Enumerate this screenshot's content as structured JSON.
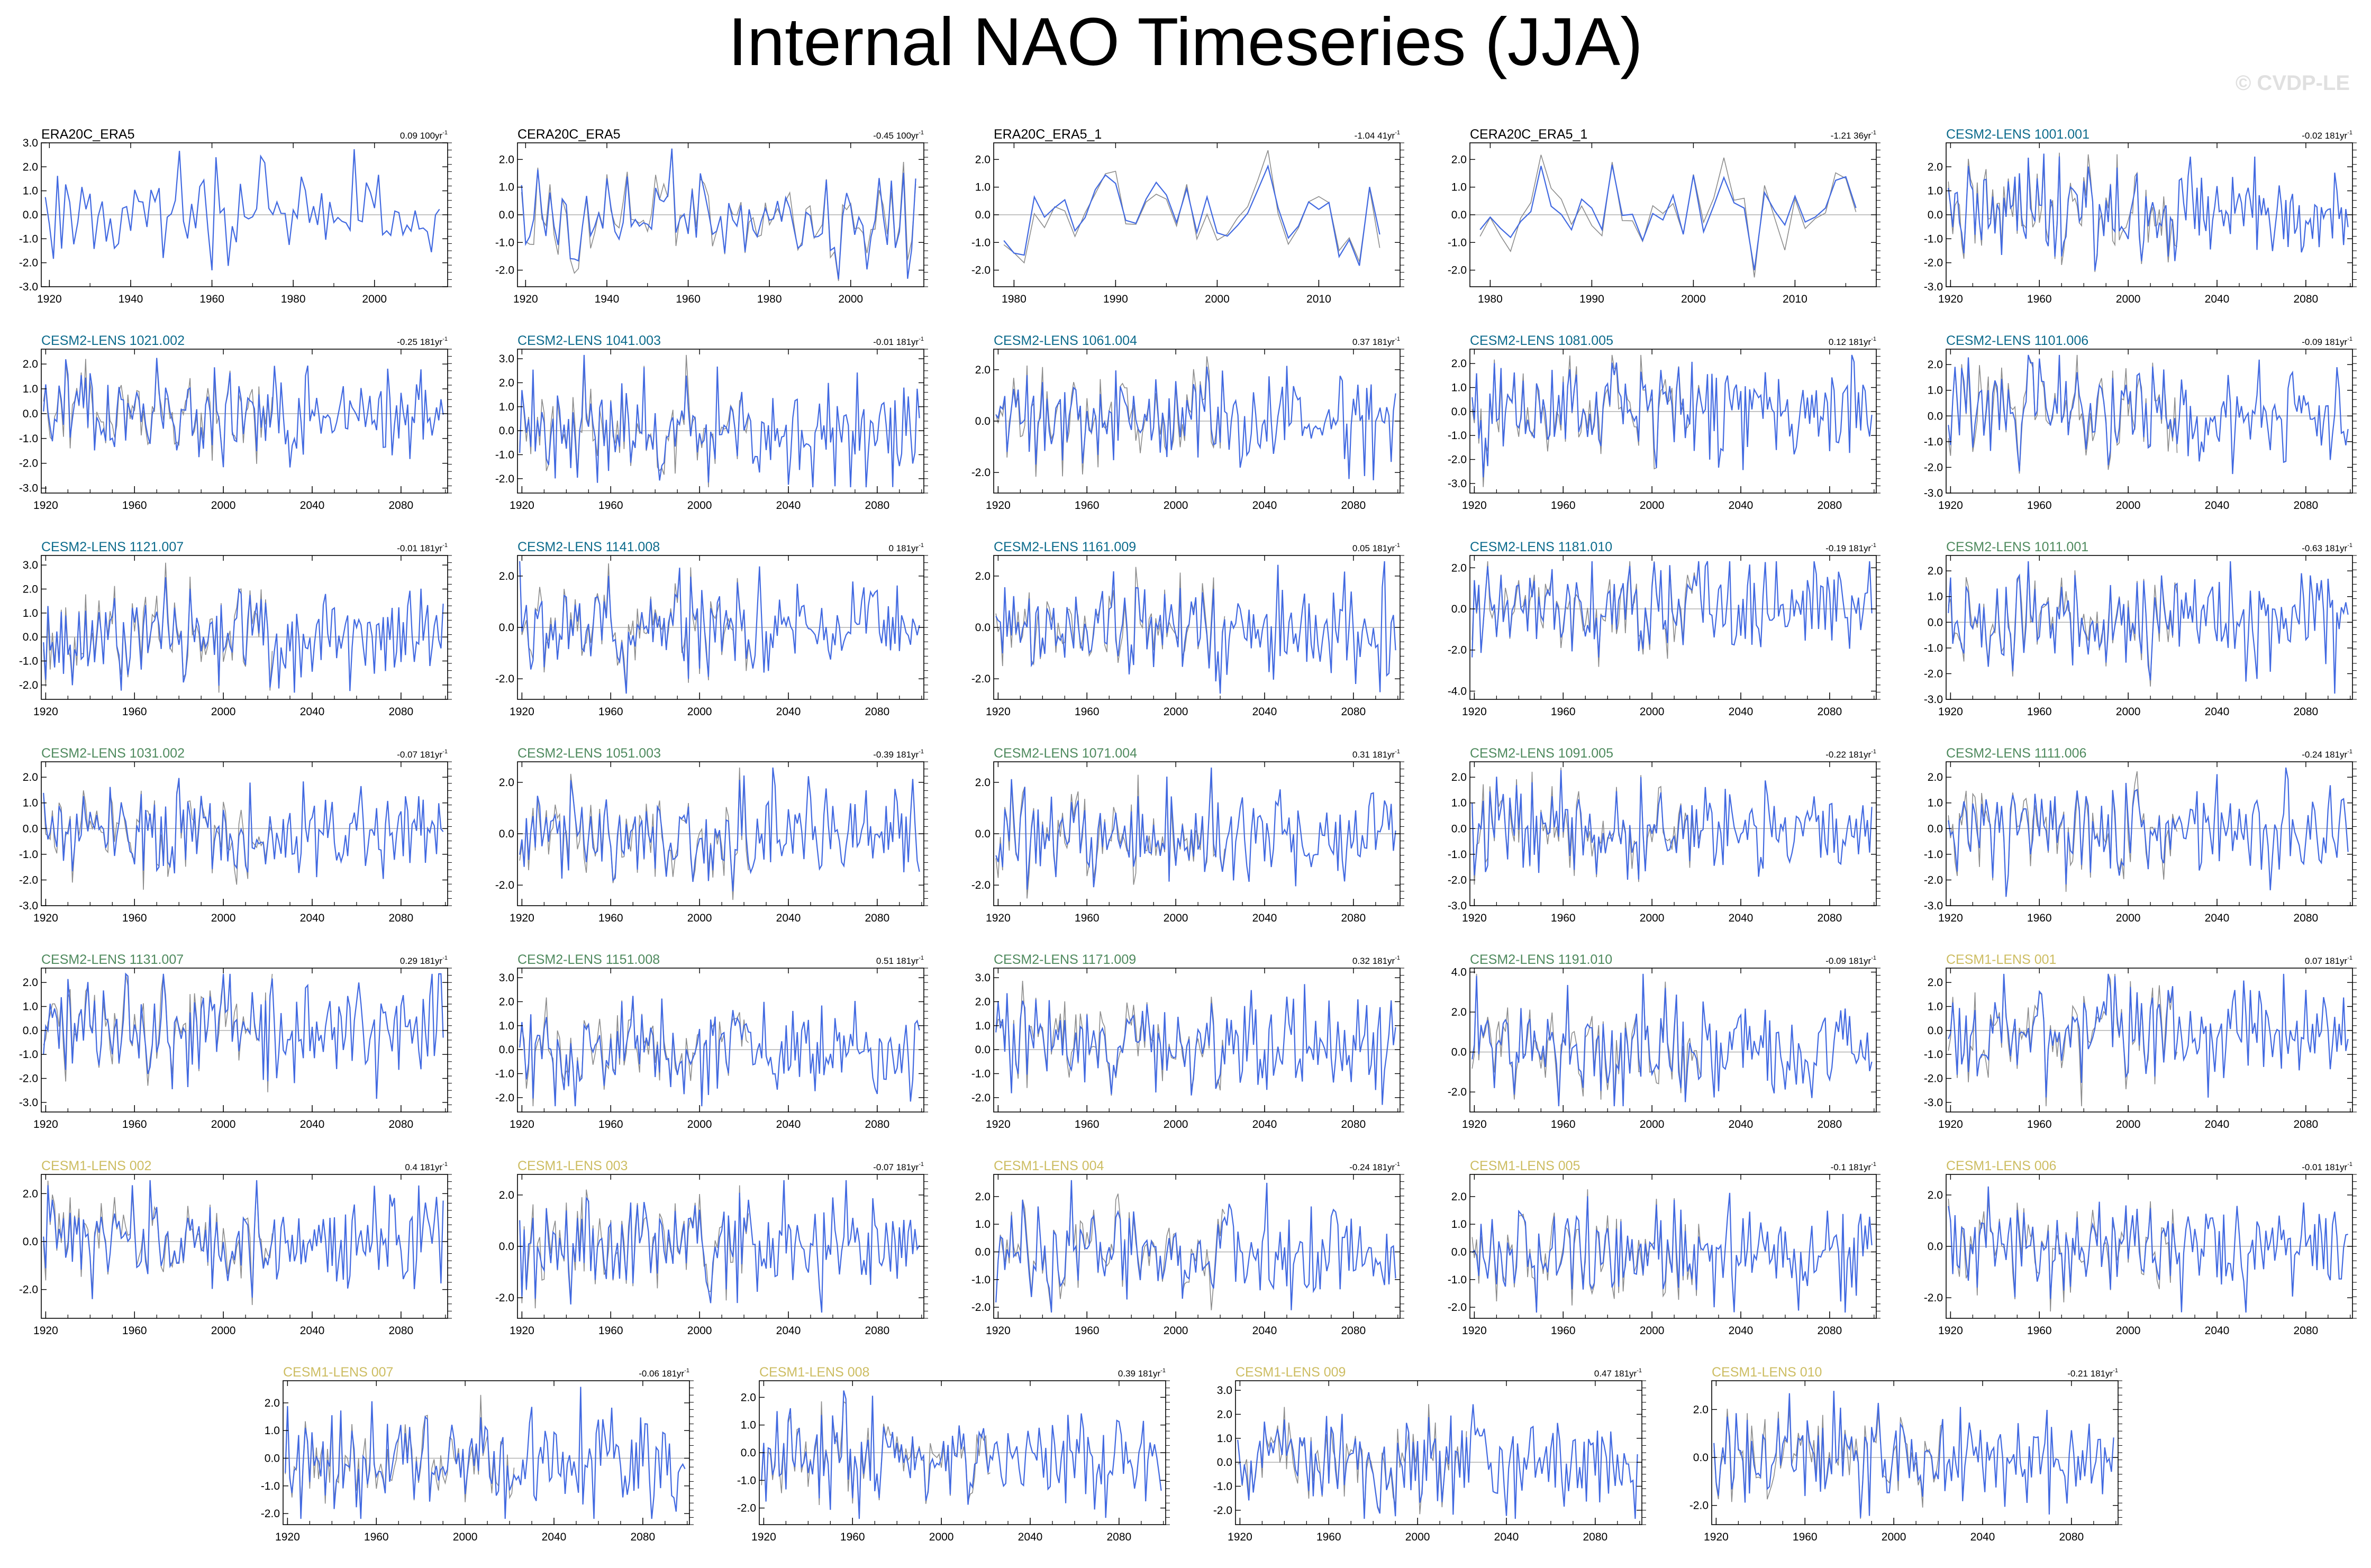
{
  "title": "Internal NAO Timeseries (JJA)",
  "watermark": "© CVDP-LE",
  "colors": {
    "obs_name": "#000000",
    "cesm2_first": "#0d6b8c",
    "cesm2_second": "#4f8a5e",
    "cesm1": "#cdbd62",
    "internal_line": "#4169e1",
    "total_line": "#8c8c8c",
    "zero_line": "#b0b0b0",
    "axis": "#000000"
  },
  "chart_data": [
    {
      "type": "line",
      "name": "ERA20C_ERA5",
      "trend_value": "0.09",
      "trend_unit": "100yr",
      "name_color": "obs_name",
      "x_range": [
        1918,
        2018
      ],
      "x_ticks": [
        "1920",
        "1940",
        "1960",
        "1980",
        "2000"
      ],
      "ylim": [
        -3,
        3
      ],
      "y_ticks": [
        "3.0",
        "2.0",
        "1.0",
        "0.0",
        "-1.0",
        "-2.0",
        "-3.0"
      ],
      "series_count": 1
    },
    {
      "type": "line",
      "name": "CERA20C_ERA5",
      "trend_value": "-0.45",
      "trend_unit": "100yr",
      "name_color": "obs_name",
      "x_range": [
        1918,
        2018
      ],
      "x_ticks": [
        "1920",
        "1940",
        "1960",
        "1980",
        "2000"
      ],
      "ylim": [
        -2.6,
        2.6
      ],
      "y_ticks": [
        "2.0",
        "1.0",
        "0.0",
        "-1.0",
        "-2.0"
      ],
      "series_count": 2
    },
    {
      "type": "line",
      "name": "ERA20C_ERA5_1",
      "trend_value": "-1.04",
      "trend_unit": "41yr",
      "name_color": "obs_name",
      "x_range": [
        1978,
        2018
      ],
      "x_ticks": [
        "1980",
        "1990",
        "2000",
        "2010"
      ],
      "ylim": [
        -2.6,
        2.6
      ],
      "y_ticks": [
        "2.0",
        "1.0",
        "0.0",
        "-1.0",
        "-2.0"
      ],
      "series_count": 2
    },
    {
      "type": "line",
      "name": "CERA20C_ERA5_1",
      "trend_value": "-1.21",
      "trend_unit": "36yr",
      "name_color": "obs_name",
      "x_range": [
        1978,
        2018
      ],
      "x_ticks": [
        "1980",
        "1990",
        "2000",
        "2010"
      ],
      "ylim": [
        -2.6,
        2.6
      ],
      "y_ticks": [
        "2.0",
        "1.0",
        "0.0",
        "-1.0",
        "-2.0"
      ],
      "series_count": 2
    },
    {
      "type": "line",
      "name": "CESM2-LENS 1001.001",
      "trend_value": "-0.02",
      "trend_unit": "181yr",
      "name_color": "cesm2_first",
      "x_range": [
        1918,
        2101
      ],
      "x_ticks": [
        "1920",
        "1960",
        "2000",
        "2040",
        "2080"
      ],
      "ylim": [
        -3,
        3
      ],
      "y_ticks": [
        "2.0",
        "1.0",
        "0.0",
        "-1.0",
        "-2.0",
        "-3.0"
      ],
      "series_count": 2
    },
    {
      "type": "line",
      "name": "CESM2-LENS 1021.002",
      "trend_value": "-0.25",
      "trend_unit": "181yr",
      "name_color": "cesm2_first",
      "x_range": [
        1918,
        2101
      ],
      "x_ticks": [
        "1920",
        "1960",
        "2000",
        "2040",
        "2080"
      ],
      "ylim": [
        -3.2,
        2.6
      ],
      "y_ticks": [
        "2.0",
        "1.0",
        "0.0",
        "-1.0",
        "-2.0",
        "-3.0"
      ],
      "series_count": 2
    },
    {
      "type": "line",
      "name": "CESM2-LENS 1041.003",
      "trend_value": "-0.01",
      "trend_unit": "181yr",
      "name_color": "cesm2_first",
      "x_range": [
        1918,
        2101
      ],
      "x_ticks": [
        "1920",
        "1960",
        "2000",
        "2040",
        "2080"
      ],
      "ylim": [
        -2.6,
        3.4
      ],
      "y_ticks": [
        "3.0",
        "2.0",
        "1.0",
        "0.0",
        "-1.0",
        "-2.0"
      ],
      "series_count": 2
    },
    {
      "type": "line",
      "name": "CESM2-LENS 1061.004",
      "trend_value": "0.37",
      "trend_unit": "181yr",
      "name_color": "cesm2_first",
      "x_range": [
        1918,
        2101
      ],
      "x_ticks": [
        "1920",
        "1960",
        "2000",
        "2040",
        "2080"
      ],
      "ylim": [
        -2.8,
        2.8
      ],
      "y_ticks": [
        "2.0",
        "0.0",
        "-2.0"
      ],
      "series_count": 2
    },
    {
      "type": "line",
      "name": "CESM2-LENS 1081.005",
      "trend_value": "0.12",
      "trend_unit": "181yr",
      "name_color": "cesm2_first",
      "x_range": [
        1918,
        2101
      ],
      "x_ticks": [
        "1920",
        "1960",
        "2000",
        "2040",
        "2080"
      ],
      "ylim": [
        -3.4,
        2.6
      ],
      "y_ticks": [
        "2.0",
        "1.0",
        "0.0",
        "-1.0",
        "-2.0",
        "-3.0"
      ],
      "series_count": 2
    },
    {
      "type": "line",
      "name": "CESM2-LENS 1101.006",
      "trend_value": "-0.09",
      "trend_unit": "181yr",
      "name_color": "cesm2_first",
      "x_range": [
        1918,
        2101
      ],
      "x_ticks": [
        "1920",
        "1960",
        "2000",
        "2040",
        "2080"
      ],
      "ylim": [
        -3,
        2.6
      ],
      "y_ticks": [
        "2.0",
        "1.0",
        "0.0",
        "-1.0",
        "-2.0",
        "-3.0"
      ],
      "series_count": 2
    },
    {
      "type": "line",
      "name": "CESM2-LENS 1121.007",
      "trend_value": "-0.01",
      "trend_unit": "181yr",
      "name_color": "cesm2_first",
      "x_range": [
        1918,
        2101
      ],
      "x_ticks": [
        "1920",
        "1960",
        "2000",
        "2040",
        "2080"
      ],
      "ylim": [
        -2.6,
        3.4
      ],
      "y_ticks": [
        "3.0",
        "2.0",
        "1.0",
        "0.0",
        "-1.0",
        "-2.0"
      ],
      "series_count": 2
    },
    {
      "type": "line",
      "name": "CESM2-LENS 1141.008",
      "trend_value": "0",
      "trend_unit": "181yr",
      "name_color": "cesm2_first",
      "x_range": [
        1918,
        2101
      ],
      "x_ticks": [
        "1920",
        "1960",
        "2000",
        "2040",
        "2080"
      ],
      "ylim": [
        -2.8,
        2.8
      ],
      "y_ticks": [
        "2.0",
        "0.0",
        "-2.0"
      ],
      "series_count": 2
    },
    {
      "type": "line",
      "name": "CESM2-LENS 1161.009",
      "trend_value": "0.05",
      "trend_unit": "181yr",
      "name_color": "cesm2_first",
      "x_range": [
        1918,
        2101
      ],
      "x_ticks": [
        "1920",
        "1960",
        "2000",
        "2040",
        "2080"
      ],
      "ylim": [
        -2.8,
        2.8
      ],
      "y_ticks": [
        "2.0",
        "0.0",
        "-2.0"
      ],
      "series_count": 2
    },
    {
      "type": "line",
      "name": "CESM2-LENS 1181.010",
      "trend_value": "-0.19",
      "trend_unit": "181yr",
      "name_color": "cesm2_first",
      "x_range": [
        1918,
        2101
      ],
      "x_ticks": [
        "1920",
        "1960",
        "2000",
        "2040",
        "2080"
      ],
      "ylim": [
        -4.4,
        2.6
      ],
      "y_ticks": [
        "2.0",
        "0.0",
        "-2.0",
        "-4.0"
      ],
      "series_count": 2
    },
    {
      "type": "line",
      "name": "CESM2-LENS 1011.001",
      "trend_value": "-0.63",
      "trend_unit": "181yr",
      "name_color": "cesm2_second",
      "x_range": [
        1918,
        2101
      ],
      "x_ticks": [
        "1920",
        "1960",
        "2000",
        "2040",
        "2080"
      ],
      "ylim": [
        -3,
        2.6
      ],
      "y_ticks": [
        "2.0",
        "1.0",
        "0.0",
        "-1.0",
        "-2.0",
        "-3.0"
      ],
      "series_count": 2
    },
    {
      "type": "line",
      "name": "CESM2-LENS 1031.002",
      "trend_value": "-0.07",
      "trend_unit": "181yr",
      "name_color": "cesm2_second",
      "x_range": [
        1918,
        2101
      ],
      "x_ticks": [
        "1920",
        "1960",
        "2000",
        "2040",
        "2080"
      ],
      "ylim": [
        -3,
        2.6
      ],
      "y_ticks": [
        "2.0",
        "1.0",
        "0.0",
        "-1.0",
        "-2.0",
        "-3.0"
      ],
      "series_count": 2
    },
    {
      "type": "line",
      "name": "CESM2-LENS 1051.003",
      "trend_value": "-0.39",
      "trend_unit": "181yr",
      "name_color": "cesm2_second",
      "x_range": [
        1918,
        2101
      ],
      "x_ticks": [
        "1920",
        "1960",
        "2000",
        "2040",
        "2080"
      ],
      "ylim": [
        -2.8,
        2.8
      ],
      "y_ticks": [
        "2.0",
        "0.0",
        "-2.0"
      ],
      "series_count": 2
    },
    {
      "type": "line",
      "name": "CESM2-LENS 1071.004",
      "trend_value": "0.31",
      "trend_unit": "181yr",
      "name_color": "cesm2_second",
      "x_range": [
        1918,
        2101
      ],
      "x_ticks": [
        "1920",
        "1960",
        "2000",
        "2040",
        "2080"
      ],
      "ylim": [
        -2.8,
        2.8
      ],
      "y_ticks": [
        "2.0",
        "0.0",
        "-2.0"
      ],
      "series_count": 2
    },
    {
      "type": "line",
      "name": "CESM2-LENS 1091.005",
      "trend_value": "-0.22",
      "trend_unit": "181yr",
      "name_color": "cesm2_second",
      "x_range": [
        1918,
        2101
      ],
      "x_ticks": [
        "1920",
        "1960",
        "2000",
        "2040",
        "2080"
      ],
      "ylim": [
        -3,
        2.6
      ],
      "y_ticks": [
        "2.0",
        "1.0",
        "0.0",
        "-1.0",
        "-2.0",
        "-3.0"
      ],
      "series_count": 2
    },
    {
      "type": "line",
      "name": "CESM2-LENS 1111.006",
      "trend_value": "-0.24",
      "trend_unit": "181yr",
      "name_color": "cesm2_second",
      "x_range": [
        1918,
        2101
      ],
      "x_ticks": [
        "1920",
        "1960",
        "2000",
        "2040",
        "2080"
      ],
      "ylim": [
        -3,
        2.6
      ],
      "y_ticks": [
        "2.0",
        "1.0",
        "0.0",
        "-1.0",
        "-2.0",
        "-3.0"
      ],
      "series_count": 2
    },
    {
      "type": "line",
      "name": "CESM2-LENS 1131.007",
      "trend_value": "0.29",
      "trend_unit": "181yr",
      "name_color": "cesm2_second",
      "x_range": [
        1918,
        2101
      ],
      "x_ticks": [
        "1920",
        "1960",
        "2000",
        "2040",
        "2080"
      ],
      "ylim": [
        -3.4,
        2.6
      ],
      "y_ticks": [
        "2.0",
        "1.0",
        "0.0",
        "-1.0",
        "-2.0",
        "-3.0"
      ],
      "series_count": 2
    },
    {
      "type": "line",
      "name": "CESM2-LENS 1151.008",
      "trend_value": "0.51",
      "trend_unit": "181yr",
      "name_color": "cesm2_second",
      "x_range": [
        1918,
        2101
      ],
      "x_ticks": [
        "1920",
        "1960",
        "2000",
        "2040",
        "2080"
      ],
      "ylim": [
        -2.6,
        3.4
      ],
      "y_ticks": [
        "3.0",
        "2.0",
        "1.0",
        "0.0",
        "-1.0",
        "-2.0"
      ],
      "series_count": 2
    },
    {
      "type": "line",
      "name": "CESM2-LENS 1171.009",
      "trend_value": "0.32",
      "trend_unit": "181yr",
      "name_color": "cesm2_second",
      "x_range": [
        1918,
        2101
      ],
      "x_ticks": [
        "1920",
        "1960",
        "2000",
        "2040",
        "2080"
      ],
      "ylim": [
        -2.6,
        3.4
      ],
      "y_ticks": [
        "3.0",
        "2.0",
        "1.0",
        "0.0",
        "-1.0",
        "-2.0"
      ],
      "series_count": 2
    },
    {
      "type": "line",
      "name": "CESM2-LENS 1191.010",
      "trend_value": "-0.09",
      "trend_unit": "181yr",
      "name_color": "cesm2_second",
      "x_range": [
        1918,
        2101
      ],
      "x_ticks": [
        "1920",
        "1960",
        "2000",
        "2040",
        "2080"
      ],
      "ylim": [
        -3,
        4.2
      ],
      "y_ticks": [
        "4.0",
        "2.0",
        "0.0",
        "-2.0"
      ],
      "series_count": 2
    },
    {
      "type": "line",
      "name": "CESM1-LENS 001",
      "trend_value": "0.07",
      "trend_unit": "181yr",
      "name_color": "cesm1",
      "x_range": [
        1918,
        2101
      ],
      "x_ticks": [
        "1920",
        "1960",
        "2000",
        "2040",
        "2080"
      ],
      "ylim": [
        -3.4,
        2.6
      ],
      "y_ticks": [
        "2.0",
        "1.0",
        "0.0",
        "-1.0",
        "-2.0",
        "-3.0"
      ],
      "series_count": 2
    },
    {
      "type": "line",
      "name": "CESM1-LENS 002",
      "trend_value": "0.4",
      "trend_unit": "181yr",
      "name_color": "cesm1",
      "x_range": [
        1918,
        2101
      ],
      "x_ticks": [
        "1920",
        "1960",
        "2000",
        "2040",
        "2080"
      ],
      "ylim": [
        -3.2,
        2.8
      ],
      "y_ticks": [
        "2.0",
        "0.0",
        "-2.0"
      ],
      "series_count": 2
    },
    {
      "type": "line",
      "name": "CESM1-LENS 003",
      "trend_value": "-0.07",
      "trend_unit": "181yr",
      "name_color": "cesm1",
      "x_range": [
        1918,
        2101
      ],
      "x_ticks": [
        "1920",
        "1960",
        "2000",
        "2040",
        "2080"
      ],
      "ylim": [
        -2.8,
        2.8
      ],
      "y_ticks": [
        "2.0",
        "0.0",
        "-2.0"
      ],
      "series_count": 2
    },
    {
      "type": "line",
      "name": "CESM1-LENS 004",
      "trend_value": "-0.24",
      "trend_unit": "181yr",
      "name_color": "cesm1",
      "x_range": [
        1918,
        2101
      ],
      "x_ticks": [
        "1920",
        "1960",
        "2000",
        "2040",
        "2080"
      ],
      "ylim": [
        -2.4,
        2.8
      ],
      "y_ticks": [
        "2.0",
        "1.0",
        "0.0",
        "-1.0",
        "-2.0"
      ],
      "series_count": 2
    },
    {
      "type": "line",
      "name": "CESM1-LENS 005",
      "trend_value": "-0.1",
      "trend_unit": "181yr",
      "name_color": "cesm1",
      "x_range": [
        1918,
        2101
      ],
      "x_ticks": [
        "1920",
        "1960",
        "2000",
        "2040",
        "2080"
      ],
      "ylim": [
        -2.4,
        2.8
      ],
      "y_ticks": [
        "2.0",
        "1.0",
        "0.0",
        "-1.0",
        "-2.0"
      ],
      "series_count": 2
    },
    {
      "type": "line",
      "name": "CESM1-LENS 006",
      "trend_value": "-0.01",
      "trend_unit": "181yr",
      "name_color": "cesm1",
      "x_range": [
        1918,
        2101
      ],
      "x_ticks": [
        "1920",
        "1960",
        "2000",
        "2040",
        "2080"
      ],
      "ylim": [
        -2.8,
        2.8
      ],
      "y_ticks": [
        "2.0",
        "0.0",
        "-2.0"
      ],
      "series_count": 2
    },
    {
      "type": "line",
      "name": "CESM1-LENS 007",
      "trend_value": "-0.06",
      "trend_unit": "181yr",
      "name_color": "cesm1",
      "x_range": [
        1918,
        2101
      ],
      "x_ticks": [
        "1920",
        "1960",
        "2000",
        "2040",
        "2080"
      ],
      "ylim": [
        -2.4,
        2.8
      ],
      "y_ticks": [
        "2.0",
        "1.0",
        "0.0",
        "-1.0",
        "-2.0"
      ],
      "series_count": 2
    },
    {
      "type": "line",
      "name": "CESM1-LENS 008",
      "trend_value": "0.39",
      "trend_unit": "181yr",
      "name_color": "cesm1",
      "x_range": [
        1918,
        2101
      ],
      "x_ticks": [
        "1920",
        "1960",
        "2000",
        "2040",
        "2080"
      ],
      "ylim": [
        -2.6,
        2.6
      ],
      "y_ticks": [
        "2.0",
        "1.0",
        "0.0",
        "-1.0",
        "-2.0"
      ],
      "series_count": 2
    },
    {
      "type": "line",
      "name": "CESM1-LENS 009",
      "trend_value": "0.47",
      "trend_unit": "181yr",
      "name_color": "cesm1",
      "x_range": [
        1918,
        2101
      ],
      "x_ticks": [
        "1920",
        "1960",
        "2000",
        "2040",
        "2080"
      ],
      "ylim": [
        -2.6,
        3.4
      ],
      "y_ticks": [
        "3.0",
        "2.0",
        "1.0",
        "0.0",
        "-1.0",
        "-2.0"
      ],
      "series_count": 2
    },
    {
      "type": "line",
      "name": "CESM1-LENS 010",
      "trend_value": "-0.21",
      "trend_unit": "181yr",
      "name_color": "cesm1",
      "x_range": [
        1918,
        2101
      ],
      "x_ticks": [
        "1920",
        "1960",
        "2000",
        "2040",
        "2080"
      ],
      "ylim": [
        -2.8,
        3.2
      ],
      "y_ticks": [
        "2.0",
        "0.0",
        "-2.0"
      ],
      "series_count": 2
    }
  ]
}
